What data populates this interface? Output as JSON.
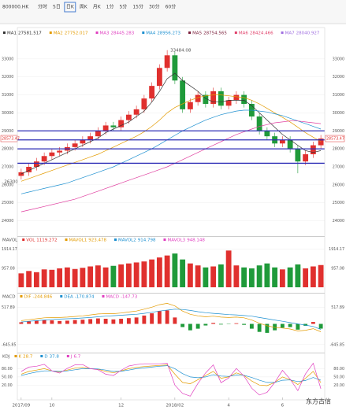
{
  "toolbar": {
    "code": "800000.HK",
    "tabs": [
      "分时",
      "5日",
      "日K",
      "周K",
      "月K",
      "1分",
      "5分",
      "15分",
      "30分",
      "60分"
    ]
  },
  "watermark": "东方古信",
  "chart_data": [
    {
      "type": "candlestick",
      "categories": [
        "2017/09",
        null,
        null,
        null,
        "10",
        null,
        null,
        null,
        null,
        null,
        null,
        null,
        null,
        "12",
        null,
        null,
        null,
        null,
        null,
        null,
        "2018/02",
        null,
        null,
        null,
        null,
        null,
        null,
        "4",
        null,
        null,
        null,
        null,
        null,
        null,
        "6",
        null,
        null,
        null,
        null,
        null
      ],
      "open": [
        26500,
        26700,
        27000,
        27300,
        27600,
        27800,
        27900,
        28100,
        28300,
        28500,
        28700,
        29000,
        29300,
        29200,
        29600,
        29900,
        30200,
        30800,
        31500,
        32500,
        33200,
        31800,
        30200,
        30600,
        31000,
        30500,
        31200,
        30400,
        30700,
        31000,
        30500,
        29800,
        29000,
        28700,
        28300,
        28500,
        28000,
        27300,
        27700,
        28200
      ],
      "high": [
        26900,
        27200,
        27500,
        27800,
        28000,
        28100,
        28300,
        28500,
        28700,
        28900,
        29200,
        29500,
        29500,
        29800,
        30100,
        30400,
        31000,
        31700,
        32700,
        33484.08,
        33400,
        32000,
        30800,
        31200,
        31200,
        31400,
        31400,
        30900,
        31200,
        31200,
        30700,
        30000,
        29200,
        28900,
        28700,
        28700,
        28200,
        27900,
        28400,
        28773
      ],
      "low": [
        26300,
        26500,
        26800,
        27100,
        27400,
        27600,
        27700,
        27900,
        28100,
        28300,
        28500,
        28800,
        29000,
        29000,
        29400,
        29700,
        30000,
        30600,
        31300,
        32300,
        31600,
        30000,
        30000,
        30400,
        30300,
        30300,
        30200,
        30200,
        30500,
        30300,
        29600,
        28800,
        28500,
        28100,
        28100,
        27800,
        26644.59,
        27100,
        27500,
        28000
      ],
      "close": [
        26700,
        27000,
        27300,
        27600,
        27800,
        27900,
        28100,
        28300,
        28500,
        28700,
        29000,
        29300,
        29200,
        29600,
        29900,
        30200,
        30800,
        31500,
        32500,
        33200,
        31800,
        30200,
        30600,
        31000,
        30500,
        31200,
        30400,
        30700,
        31000,
        30500,
        29800,
        29000,
        28700,
        28300,
        28500,
        28000,
        27300,
        27700,
        28200,
        28573.47
      ],
      "up_color": "#e0302e",
      "down_color": "#1f9a3a",
      "series": [
        {
          "color": "#333333",
          "values": [
            26600,
            26800,
            27000,
            27200,
            27400,
            27600,
            27800,
            28000,
            28200,
            28400,
            28600,
            28900,
            29100,
            29300,
            29500,
            29800,
            30100,
            30600,
            31200,
            31900,
            32200,
            31800,
            31500,
            31200,
            30800,
            30600,
            30600,
            30700,
            30700,
            30700,
            30400,
            30000,
            29600,
            29200,
            28800,
            28500,
            28200,
            27900,
            27800,
            27900
          ]
        },
        {
          "color": "#e39b00",
          "values": [
            26200,
            26350,
            26500,
            26650,
            26800,
            26950,
            27100,
            27250,
            27400,
            27550,
            27700,
            27900,
            28100,
            28300,
            28500,
            28700,
            28950,
            29250,
            29600,
            30000,
            30300,
            30500,
            30700,
            30850,
            30950,
            31000,
            31000,
            30950,
            30900,
            30850,
            30700,
            30500,
            30250,
            30000,
            29750,
            29500,
            29200,
            28900,
            28650,
            28400
          ]
        },
        {
          "color": "#1e90d0",
          "values": [
            25500,
            25600,
            25700,
            25800,
            25900,
            26000,
            26100,
            26250,
            26400,
            26550,
            26700,
            26850,
            27000,
            27200,
            27400,
            27600,
            27800,
            28000,
            28250,
            28500,
            28750,
            29000,
            29200,
            29400,
            29600,
            29750,
            29900,
            30000,
            30100,
            30150,
            30150,
            30100,
            30050,
            29950,
            29850,
            29700,
            29550,
            29400,
            29250,
            29100
          ]
        },
        {
          "color": "#e040a0",
          "values": [
            24500,
            24600,
            24700,
            24800,
            24900,
            25000,
            25100,
            25200,
            25350,
            25500,
            25650,
            25800,
            25950,
            26100,
            26250,
            26400,
            26550,
            26700,
            26850,
            27000,
            27200,
            27400,
            27600,
            27800,
            28000,
            28200,
            28400,
            28600,
            28800,
            28950,
            29100,
            29250,
            29350,
            29450,
            29500,
            29550,
            29550,
            29500,
            29450,
            29400
          ]
        }
      ],
      "legend": [
        {
          "name": "MA1",
          "value": 27581.517,
          "color": "#333333"
        },
        {
          "name": "MA2",
          "value": 27752.017,
          "color": "#e39b00"
        },
        {
          "name": "MA3",
          "value": 28445.283,
          "color": "#e040c0"
        },
        {
          "name": "MA4",
          "value": 28956.273,
          "color": "#1e90d0"
        },
        {
          "name": "MA5",
          "value": 28754.565,
          "color": "#7b1f3b"
        },
        {
          "name": "MA6",
          "value": 28424.466,
          "color": "#e0406a"
        },
        {
          "name": "MA7",
          "value": 28040.927,
          "color": "#a070e0"
        }
      ],
      "hlines": [
        29000,
        28500,
        28000,
        27200
      ],
      "hline_color": "#2d2db5",
      "ylim": [
        23500,
        34000
      ],
      "yticks": [
        24000,
        25000,
        26000,
        27000,
        28000,
        29000,
        30000,
        31000,
        32000,
        33000
      ]
    },
    {
      "type": "bar",
      "title": "MAVOL",
      "legend": [
        {
          "name": "VOL",
          "value": 1119.272,
          "color": "#e0302e"
        },
        {
          "name": "MAVOL1",
          "value": 923.478,
          "color": "#e39b00"
        },
        {
          "name": "MAVOL2",
          "value": 914.798,
          "color": "#1e90d0"
        },
        {
          "name": "MAVOL3",
          "value": 948.148,
          "color": "#e040c0"
        }
      ],
      "values": [
        700,
        820,
        760,
        900,
        880,
        950,
        1000,
        920,
        980,
        1050,
        1100,
        1000,
        1080,
        1150,
        1200,
        1250,
        1300,
        1400,
        1500,
        1600,
        1700,
        1400,
        1200,
        1100,
        1000,
        1050,
        1150,
        1850,
        1100,
        1000,
        950,
        1100,
        1200,
        1000,
        900,
        1000,
        1150,
        950,
        1050,
        1119.272
      ],
      "ylim": [
        0,
        2100
      ],
      "yticks": [
        {
          "value": 957.08,
          "label": "957.08"
        },
        {
          "value": 1914.17,
          "label": "1914.17"
        }
      ]
    },
    {
      "type": "macd",
      "title": "MACD",
      "legend": [
        {
          "name": "DIF",
          "value": -244.846,
          "color": "#e39b00"
        },
        {
          "name": "DEA",
          "value": -170.874,
          "color": "#1e90d0"
        },
        {
          "name": "MACD",
          "value": -147.73,
          "color": "#e040c0"
        }
      ],
      "values": [
        50,
        80,
        100,
        120,
        110,
        90,
        100,
        120,
        130,
        150,
        170,
        160,
        140,
        160,
        180,
        200,
        260,
        330,
        400,
        420,
        200,
        -100,
        -200,
        -150,
        -50,
        30,
        -20,
        -10,
        20,
        -30,
        -150,
        -250,
        -280,
        -200,
        -120,
        -100,
        -180,
        -60,
        60,
        -148
      ],
      "pos_color": "#e0302e",
      "neg_color": "#1f9a3a",
      "series": [
        {
          "color": "#e39b00",
          "values": [
            100,
            130,
            160,
            190,
            200,
            200,
            210,
            230,
            250,
            280,
            310,
            320,
            320,
            340,
            370,
            400,
            460,
            520,
            600,
            640,
            560,
            400,
            300,
            250,
            220,
            240,
            210,
            200,
            210,
            190,
            120,
            20,
            -60,
            -110,
            -130,
            -160,
            -220,
            -200,
            -150,
            -245
          ]
        },
        {
          "color": "#1e90d0",
          "values": [
            60,
            80,
            100,
            120,
            140,
            150,
            160,
            170,
            185,
            200,
            220,
            240,
            255,
            270,
            285,
            300,
            330,
            360,
            400,
            430,
            460,
            450,
            420,
            380,
            350,
            330,
            310,
            290,
            280,
            260,
            240,
            200,
            160,
            120,
            80,
            40,
            0,
            -40,
            -80,
            -171
          ]
        }
      ],
      "ylim": [
        -700,
        700
      ],
      "yticks": [
        {
          "value": -645.85,
          "label": "-645.85"
        },
        {
          "value": 517.89,
          "label": "517.89"
        }
      ]
    },
    {
      "type": "line",
      "title": "KDJ",
      "legend": [
        {
          "name": "K",
          "value": 28.7,
          "color": "#e39b00"
        },
        {
          "name": "D",
          "value": 37.8,
          "color": "#1e90d0"
        },
        {
          "name": "J",
          "value": 6.7,
          "color": "#e040c0"
        }
      ],
      "series": [
        {
          "color": "#e39b00",
          "values": [
            60,
            70,
            75,
            80,
            72,
            68,
            75,
            82,
            85,
            80,
            78,
            70,
            65,
            72,
            80,
            85,
            88,
            90,
            92,
            94,
            60,
            30,
            25,
            40,
            55,
            70,
            45,
            50,
            65,
            55,
            35,
            20,
            18,
            30,
            50,
            40,
            22,
            45,
            70,
            29
          ]
        },
        {
          "color": "#1e90d0",
          "values": [
            55,
            62,
            68,
            72,
            72,
            70,
            72,
            76,
            80,
            80,
            79,
            75,
            70,
            71,
            75,
            80,
            83,
            86,
            89,
            91,
            80,
            62,
            50,
            47,
            50,
            58,
            53,
            52,
            57,
            56,
            48,
            38,
            30,
            30,
            38,
            39,
            33,
            37,
            48,
            38
          ]
        },
        {
          "color": "#e040c0",
          "values": [
            70,
            86,
            89,
            96,
            72,
            64,
            81,
            94,
            95,
            80,
            76,
            60,
            55,
            74,
            90,
            95,
            98,
            98,
            98,
            100,
            20,
            -10,
            -20,
            26,
            65,
            94,
            29,
            46,
            81,
            53,
            9,
            -16,
            -6,
            30,
            74,
            42,
            0,
            61,
            100,
            7
          ]
        }
      ],
      "ylim": [
        -25,
        110
      ],
      "yticks": [
        {
          "value": 20,
          "label": "20.00"
        },
        {
          "value": 50,
          "label": "50.00"
        },
        {
          "value": 80,
          "label": "80.00"
        }
      ]
    }
  ]
}
